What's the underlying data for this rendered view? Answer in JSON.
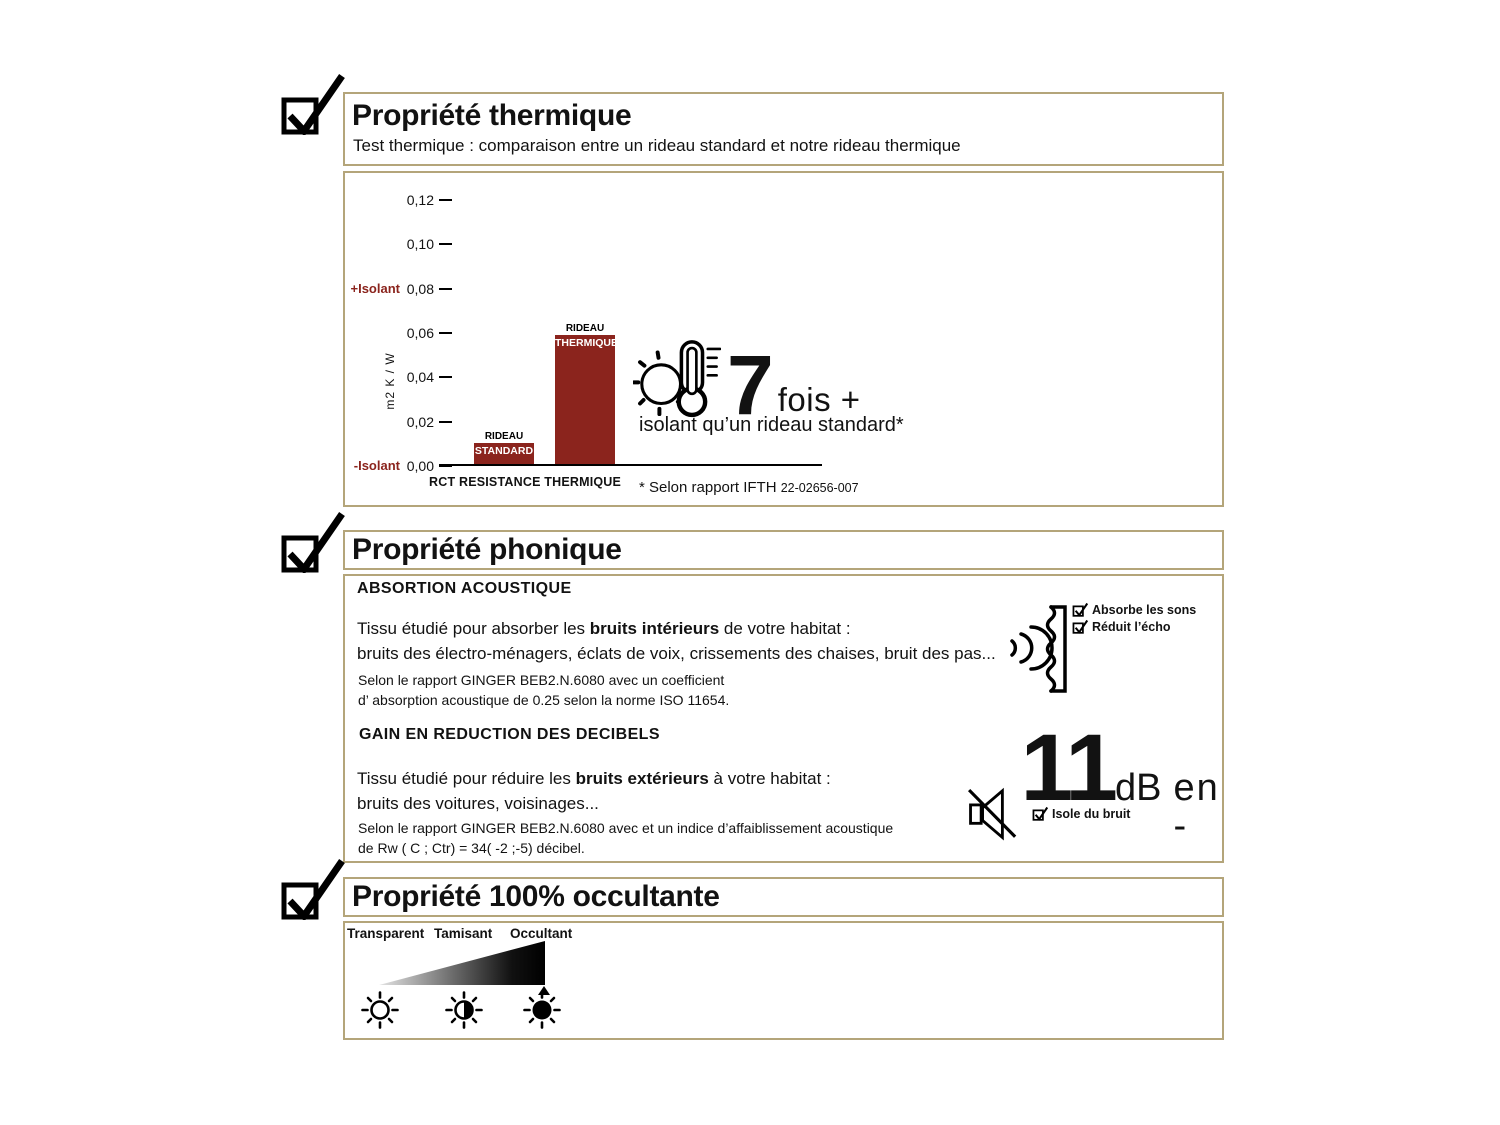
{
  "colors": {
    "accent_red": "#8b241d",
    "border_tan": "#b4a57a",
    "text": "#121212"
  },
  "thermal": {
    "title": "Propriété thermique",
    "subtitle": "Test thermique : comparaison entre un rideau standard et notre rideau thermique",
    "highlight_value": "7",
    "highlight_suffix": "fois +",
    "highlight_caption": "isolant qu’un rideau standard*",
    "footnote": "* Selon rapport IFTH ",
    "footnote_ref": "22-02656-007"
  },
  "chart_data": {
    "type": "bar",
    "categories": [
      "RIDEAU STANDARD",
      "RIDEAU THERMIQUE"
    ],
    "values": [
      0.0095,
      0.058
    ],
    "bar_labels": [
      {
        "above": "RIDEAU",
        "inside": "STANDARD"
      },
      {
        "above": "RIDEAU",
        "inside": "THERMIQUE"
      }
    ],
    "xlabel": "RCT RESISTANCE THERMIQUE",
    "ylabel": "m2  K / W",
    "ylim": [
      0,
      0.12
    ],
    "yticks": [
      "0,12",
      "0,10",
      "0,08",
      "0,06",
      "0,04",
      "0,02",
      "0,00"
    ],
    "ytick_values": [
      0.12,
      0.1,
      0.08,
      0.06,
      0.04,
      0.02,
      0.0
    ],
    "annotations": [
      {
        "text": "+Isolant",
        "at": 0.08
      },
      {
        "text": "-Isolant",
        "at": 0.0
      }
    ],
    "bar_color": "#8b241d",
    "grid": false,
    "legend": null
  },
  "acoustic": {
    "title": "Propriété phonique",
    "absorption_heading": "ABSORTION ACOUSTIQUE",
    "absorption_line1_pre": "Tissu étudié pour absorber les ",
    "absorption_line1_bold": "bruits intérieurs",
    "absorption_line1_post": " de votre habitat :",
    "absorption_line2": "bruits des électro-ménagers, éclats de voix, crissements des chaises, bruit des pas...",
    "absorption_note1": "Selon le rapport GINGER BEB2.N.6080 avec un coefficient",
    "absorption_note2": "d’ absorption acoustique de 0.25 selon la norme ISO 11654.",
    "wall_checks": [
      "Absorbe les sons",
      "Réduit l’écho"
    ],
    "gain_heading": "GAIN EN REDUCTION DES DECIBELS",
    "gain_line1_pre": "Tissu étudié pour réduire les ",
    "gain_line1_bold": "bruits extérieurs",
    "gain_line1_post": " à votre habitat :",
    "gain_line2": "bruits des voitures, voisinages...",
    "gain_note1": "Selon le rapport GINGER BEB2.N.6080 avec et un indice d’affaiblissement acoustique",
    "gain_note2": "de Rw ( C ; Ctr) = 34( -2 ;-5) décibel.",
    "db_value": "11",
    "db_unit": "dB",
    "db_tail": "en -",
    "db_check": "Isole du bruit"
  },
  "blackout": {
    "title": "Propriété 100% occultante",
    "levels": [
      "Transparent",
      "Tamisant",
      "Occultant"
    ]
  }
}
